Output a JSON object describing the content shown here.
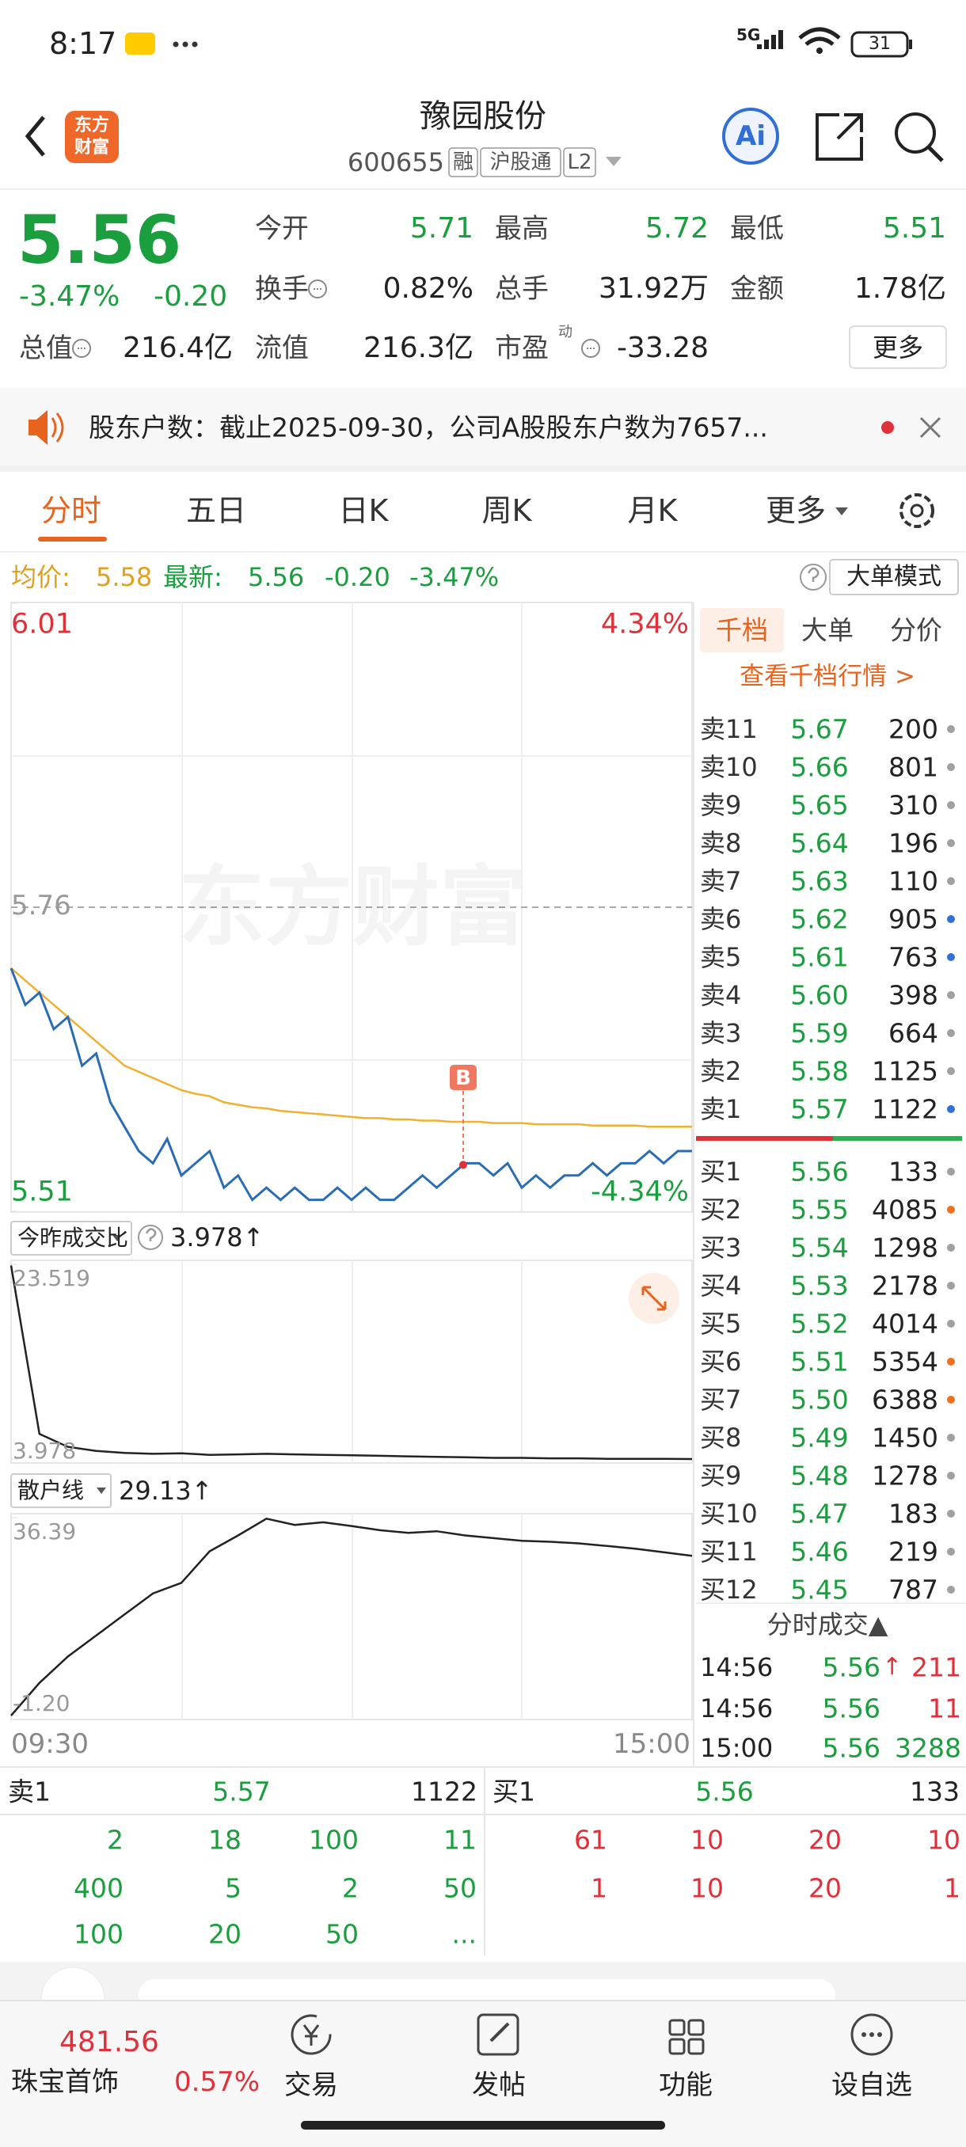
{
  "status_bar": {
    "time": "8:17",
    "network": "5G",
    "battery": "31"
  },
  "header": {
    "logo": [
      "东方",
      "财富"
    ],
    "title": "豫园股份",
    "code": "600655",
    "tags": [
      "融",
      "沪股通",
      "L2"
    ],
    "ai": "Ai"
  },
  "quote": {
    "price": "5.56",
    "change_pct": "-3.47%",
    "change": "-0.20",
    "fields": [
      {
        "label": "今开",
        "value": "5.71"
      },
      {
        "label": "最高",
        "value": "5.72"
      },
      {
        "label": "最低",
        "value": "5.51"
      },
      {
        "label": "换手",
        "value": "0.82%"
      },
      {
        "label": "总手",
        "value": "31.92万"
      },
      {
        "label": "金额",
        "value": "1.78亿"
      },
      {
        "label": "总值",
        "value": "216.4亿"
      },
      {
        "label": "流值",
        "value": "216.3亿"
      },
      {
        "label": "市盈",
        "value": "-33.28",
        "sup": "动"
      }
    ],
    "more": "更多"
  },
  "notice": "股东户数：截止2025-09-30，公司A股股东户数为7657...",
  "tabs": [
    "分时",
    "五日",
    "日K",
    "周K",
    "月K",
    "更多"
  ],
  "summary": {
    "avg_label": "均价:",
    "avg": "5.58",
    "last_label": "最新:",
    "last": "5.56",
    "change": "-0.20",
    "change_pct": "-3.47%",
    "mode": "大单模式"
  },
  "intraday": {
    "watermark": "东方财富",
    "ylim": [
      5.51,
      6.01
    ],
    "ref": 5.76,
    "pct_top": "4.34%",
    "pct_bottom": "-4.34%",
    "marker": "B",
    "price": [
      5.71,
      5.68,
      5.69,
      5.66,
      5.67,
      5.63,
      5.64,
      5.6,
      5.58,
      5.56,
      5.55,
      5.57,
      5.54,
      5.55,
      5.56,
      5.53,
      5.54,
      5.52,
      5.53,
      5.52,
      5.53,
      5.52,
      5.52,
      5.53,
      5.52,
      5.53,
      5.52,
      5.52,
      5.53,
      5.54,
      5.53,
      5.54,
      5.55,
      5.55,
      5.54,
      5.55,
      5.53,
      5.54,
      5.53,
      5.54,
      5.54,
      5.55,
      5.54,
      5.55,
      5.55,
      5.56,
      5.55,
      5.56,
      5.56
    ],
    "avg": [
      5.71,
      5.7,
      5.69,
      5.68,
      5.67,
      5.66,
      5.65,
      5.64,
      5.63,
      5.625,
      5.62,
      5.615,
      5.61,
      5.607,
      5.605,
      5.6,
      5.598,
      5.596,
      5.595,
      5.593,
      5.592,
      5.591,
      5.59,
      5.589,
      5.588,
      5.587,
      5.587,
      5.586,
      5.586,
      5.585,
      5.585,
      5.584,
      5.584,
      5.584,
      5.583,
      5.583,
      5.583,
      5.582,
      5.582,
      5.582,
      5.582,
      5.581,
      5.581,
      5.581,
      5.581,
      5.58,
      5.58,
      5.58,
      5.58
    ],
    "x_labels": [
      "09:30",
      "15:00"
    ]
  },
  "ratio": {
    "title": "今昨成交比",
    "value": "3.978↑",
    "ylim": [
      3.978,
      23.519
    ],
    "values": [
      23.4,
      6.5,
      5.2,
      4.8,
      4.6,
      4.5,
      4.55,
      4.4,
      4.45,
      4.5,
      4.45,
      4.4,
      4.35,
      4.3,
      4.25,
      4.2,
      4.15,
      4.1,
      4.1,
      4.05,
      4.05,
      4.0,
      4.0,
      3.99,
      3.98
    ]
  },
  "retail": {
    "title": "散户线",
    "value": "29.13↑",
    "ylim": [
      {
        "value": -1.2,
        "label": "-1.20"
      },
      36.39
    ],
    "values": [
      -1.2,
      5,
      10,
      14,
      18,
      22,
      24,
      30,
      33,
      36.2,
      35,
      35.5,
      34.8,
      34,
      33.5,
      33.8,
      33,
      32.5,
      32,
      31.8,
      31.5,
      31,
      30.5,
      29.8,
      29.13
    ]
  },
  "book": {
    "tabs": [
      "千档",
      "大单",
      "分价"
    ],
    "link": "查看千档行情 >",
    "asks": [
      {
        "label": "卖11",
        "price": "5.67",
        "volume": "200",
        "dot": "#a0a0a0"
      },
      {
        "label": "卖10",
        "price": "5.66",
        "volume": "801",
        "dot": "#a0a0a0"
      },
      {
        "label": "卖9",
        "price": "5.65",
        "volume": "310",
        "dot": "#a0a0a0"
      },
      {
        "label": "卖8",
        "price": "5.64",
        "volume": "196",
        "dot": "#a0a0a0"
      },
      {
        "label": "卖7",
        "price": "5.63",
        "volume": "110",
        "dot": "#a0a0a0"
      },
      {
        "label": "卖6",
        "price": "5.62",
        "volume": "905",
        "dot": "#2f6fd6"
      },
      {
        "label": "卖5",
        "price": "5.61",
        "volume": "763",
        "dot": "#2f6fd6"
      },
      {
        "label": "卖4",
        "price": "5.60",
        "volume": "398",
        "dot": "#a0a0a0"
      },
      {
        "label": "卖3",
        "price": "5.59",
        "volume": "664",
        "dot": "#a0a0a0"
      },
      {
        "label": "卖2",
        "price": "5.58",
        "volume": "1125",
        "dot": "#a0a0a0"
      },
      {
        "label": "卖1",
        "price": "5.57",
        "volume": "1122",
        "dot": "#2f6fd6"
      }
    ],
    "bids": [
      {
        "label": "买1",
        "price": "5.56",
        "volume": "133",
        "dot": "#a0a0a0"
      },
      {
        "label": "买2",
        "price": "5.55",
        "volume": "4085",
        "dot": "#f07020"
      },
      {
        "label": "买3",
        "price": "5.54",
        "volume": "1298",
        "dot": "#a0a0a0"
      },
      {
        "label": "买4",
        "price": "5.53",
        "volume": "2178",
        "dot": "#a0a0a0"
      },
      {
        "label": "买5",
        "price": "5.52",
        "volume": "4014",
        "dot": "#a0a0a0"
      },
      {
        "label": "买6",
        "price": "5.51",
        "volume": "5354",
        "dot": "#f07020"
      },
      {
        "label": "买7",
        "price": "5.50",
        "volume": "6388",
        "dot": "#f07020"
      },
      {
        "label": "买8",
        "price": "5.49",
        "volume": "1450",
        "dot": "#a0a0a0"
      },
      {
        "label": "买9",
        "price": "5.48",
        "volume": "1278",
        "dot": "#a0a0a0"
      },
      {
        "label": "买10",
        "price": "5.47",
        "volume": "183",
        "dot": "#a0a0a0"
      },
      {
        "label": "买11",
        "price": "5.46",
        "volume": "219",
        "dot": "#a0a0a0"
      },
      {
        "label": "买12",
        "price": "5.45",
        "volume": "787",
        "dot": "#a0a0a0"
      }
    ]
  },
  "trades": {
    "title": "分时成交▲",
    "rows": [
      {
        "time": "14:56",
        "price": "5.56",
        "arrow": "↑",
        "volume": "211",
        "color": "#e0303a"
      },
      {
        "time": "14:56",
        "price": "5.56",
        "volume": "11",
        "color": "#e0303a"
      },
      {
        "time": "15:00",
        "price": "5.56",
        "volume": "3288",
        "color": "#1b9e3e"
      }
    ]
  },
  "queue": {
    "ask": {
      "label": "卖1",
      "price": "5.57",
      "volume": "1122",
      "orders": [
        "2",
        "18",
        "100",
        "11",
        "400",
        "5",
        "2",
        "50",
        "100",
        "20",
        "50",
        "..."
      ]
    },
    "bid": {
      "label": "买1",
      "price": "5.56",
      "volume": "133",
      "orders": [
        "61",
        "10",
        "20",
        "10",
        "1",
        "10",
        "20",
        "1"
      ]
    }
  },
  "nav": {
    "index": {
      "value": "481.56",
      "name": "珠宝首饰",
      "change": "0.57%"
    },
    "items": [
      "交易",
      "发帖",
      "功能",
      "设自选"
    ]
  }
}
